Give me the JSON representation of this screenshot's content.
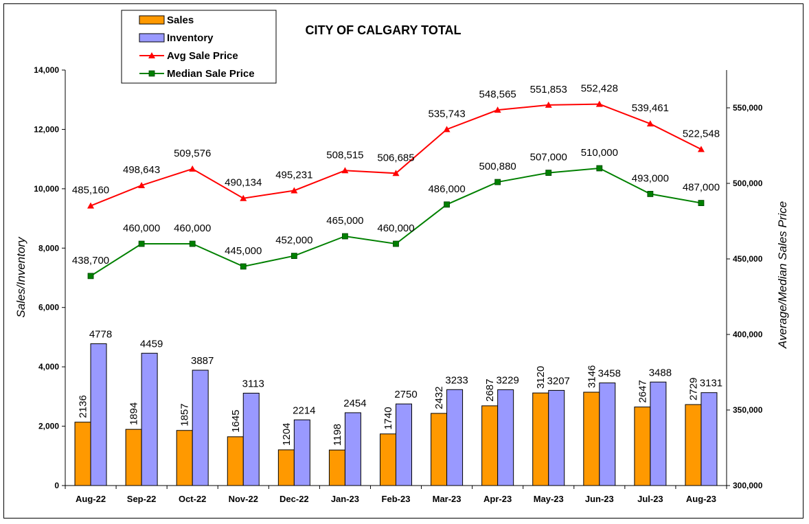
{
  "chart_data": {
    "type": "bar",
    "title": "CITY OF CALGARY TOTAL",
    "ylabel": "Sales/Inventory",
    "y2label": "Average/Median Sales Price",
    "ylim": [
      0,
      14000
    ],
    "y2lim": [
      300000,
      575000
    ],
    "yticks": [
      "0",
      "2,000",
      "4,000",
      "6,000",
      "8,000",
      "10,000",
      "12,000",
      "14,000"
    ],
    "y2ticks": [
      "300,000",
      "350,000",
      "400,000",
      "450,000",
      "500,000",
      "550,000"
    ],
    "legend_position": "top-left",
    "categories": [
      "Aug-22",
      "Sep-22",
      "Oct-22",
      "Nov-22",
      "Dec-22",
      "Jan-23",
      "Feb-23",
      "Mar-23",
      "Apr-23",
      "May-23",
      "Jun-23",
      "Jul-23",
      "Aug-23"
    ],
    "series": [
      {
        "name": "Sales",
        "kind": "bar",
        "axis": "left",
        "color": "#FF9900",
        "values": [
          2136,
          1894,
          1857,
          1645,
          1204,
          1198,
          1740,
          2432,
          2687,
          3120,
          3146,
          2647,
          2729
        ],
        "labels": [
          "2136",
          "1894",
          "1857",
          "1645",
          "1204",
          "1198",
          "1740",
          "2432",
          "2687",
          "3120",
          "3146",
          "2647",
          "2729"
        ]
      },
      {
        "name": "Inventory",
        "kind": "bar",
        "axis": "left",
        "color": "#9999FF",
        "values": [
          4778,
          4459,
          3887,
          3113,
          2214,
          2454,
          2750,
          3233,
          3229,
          3207,
          3458,
          3488,
          3131
        ],
        "labels": [
          "4778",
          "4459",
          "3887",
          "3113",
          "2214",
          "2454",
          "2750",
          "3233",
          "3229",
          "3207",
          "3458",
          "3488",
          "3131"
        ]
      },
      {
        "name": "Avg Sale Price",
        "kind": "line",
        "axis": "right",
        "color": "#FF0000",
        "marker": "triangle",
        "values": [
          485160,
          498643,
          509576,
          490134,
          495231,
          508515,
          506685,
          535743,
          548565,
          551853,
          552428,
          539461,
          522548
        ],
        "labels": [
          "485,160",
          "498,643",
          "509,576",
          "490,134",
          "495,231",
          "508,515",
          "506,685",
          "535,743",
          "548,565",
          "551,853",
          "552,428",
          "539,461",
          "522,548"
        ]
      },
      {
        "name": "Median Sale Price",
        "kind": "line",
        "axis": "right",
        "color": "#008000",
        "marker": "square",
        "values": [
          438700,
          460000,
          460000,
          445000,
          452000,
          465000,
          460000,
          486000,
          500880,
          507000,
          510000,
          493000,
          487000
        ],
        "labels": [
          "438,700",
          "460,000",
          "460,000",
          "445,000",
          "452,000",
          "465,000",
          "460,000",
          "486,000",
          "500,880",
          "507,000",
          "510,000",
          "493,000",
          "487,000"
        ]
      }
    ]
  }
}
